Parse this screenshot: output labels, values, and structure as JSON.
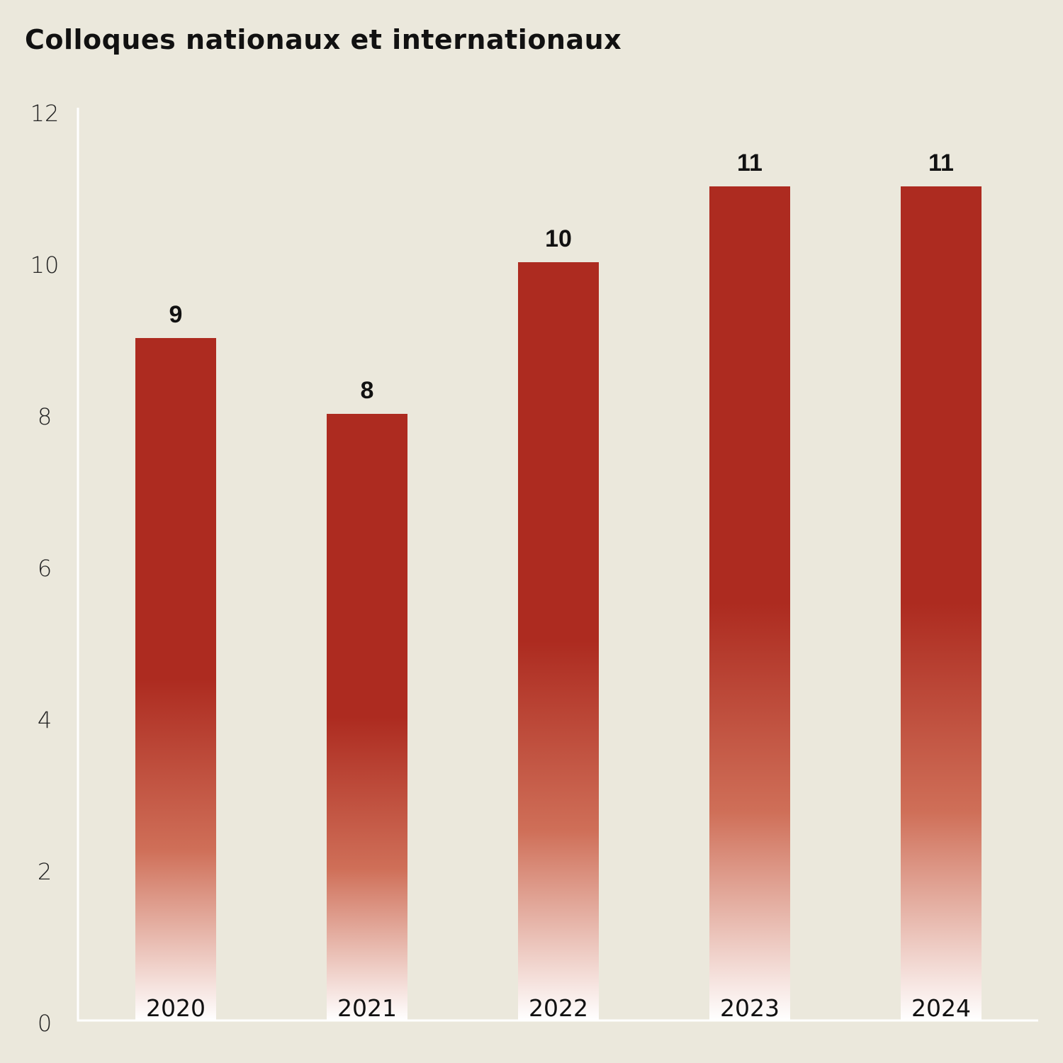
{
  "chart_data": {
    "type": "bar",
    "title": "Colloques nationaux et internationaux",
    "categories": [
      "2020",
      "2021",
      "2022",
      "2023",
      "2024"
    ],
    "values": [
      9,
      8,
      10,
      11,
      11
    ],
    "data_labels": [
      "9",
      "8",
      "10",
      "11",
      "11"
    ],
    "ylim": [
      0,
      12
    ],
    "yticks": [
      "0",
      "2",
      "4",
      "6",
      "8",
      "10",
      "12"
    ],
    "xlabel": "",
    "ylabel": "",
    "grid": false,
    "legend": "none",
    "colors": {
      "bar_top": "#AD2B20",
      "bar_mid": "#CF6F58",
      "bar_bottom": "#FFFFFF",
      "background": "#EBE8DC",
      "axis": "#FFFFFF"
    }
  }
}
